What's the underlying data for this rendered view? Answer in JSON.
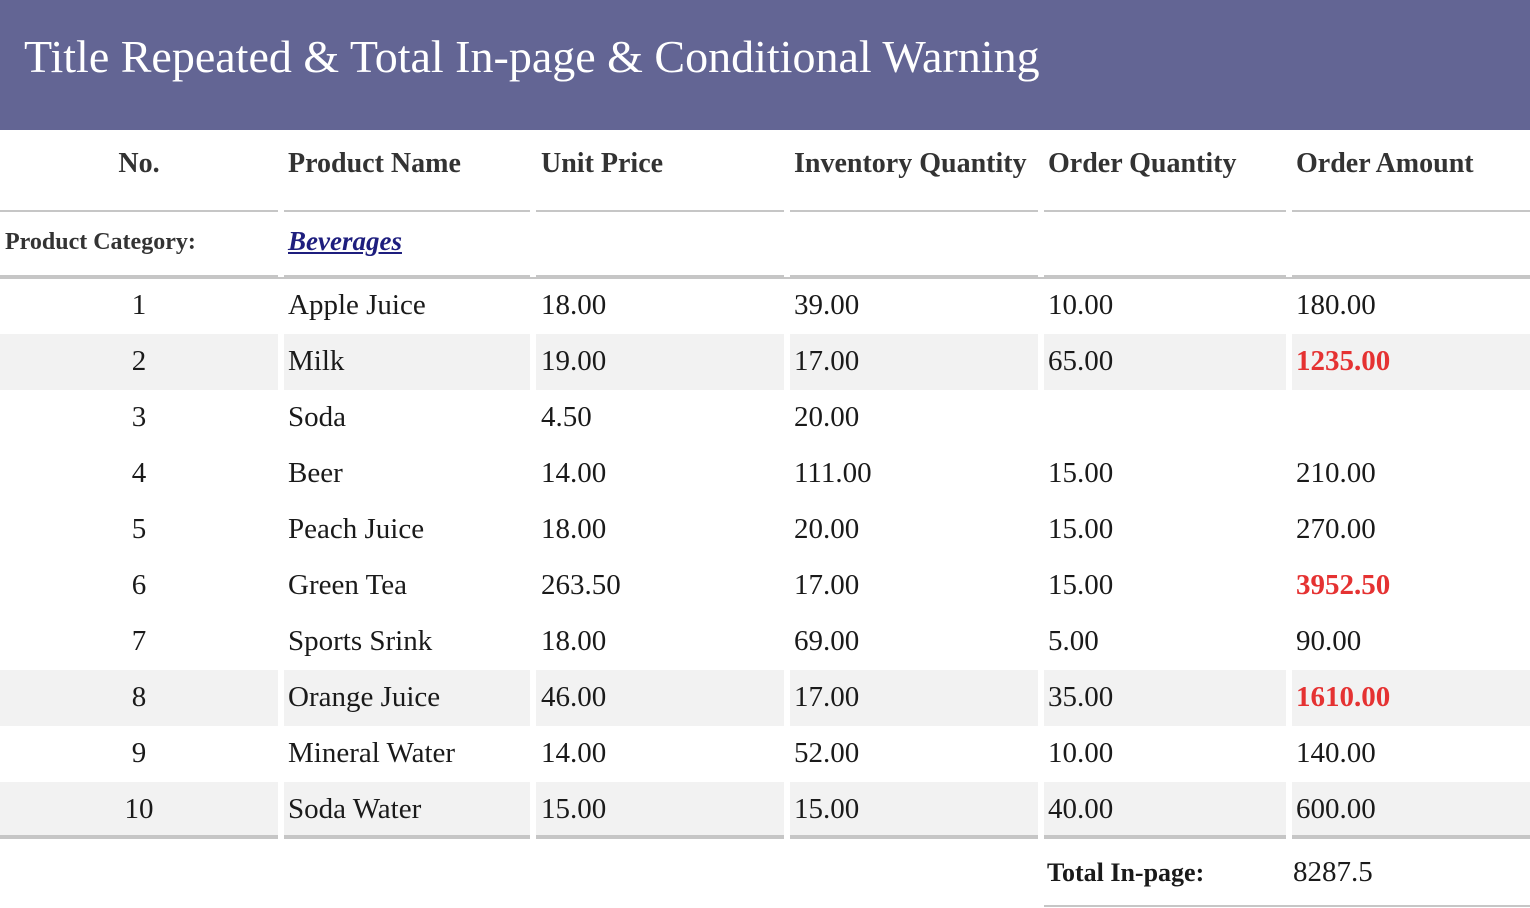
{
  "title": "Title Repeated & Total In-page & Conditional Warning",
  "columns": [
    "No.",
    "Product Name",
    "Unit Price",
    "Inventory Quantity",
    "Order Quantity",
    "Order Amount"
  ],
  "category": {
    "label": "Product Category:",
    "value": "Beverages"
  },
  "rows": [
    {
      "no": "1",
      "name": "Apple Juice",
      "price": "18.00",
      "inventory": "39.00",
      "order_qty": "10.00",
      "amount": "180.00",
      "warning": false,
      "shaded": false
    },
    {
      "no": "2",
      "name": "Milk",
      "price": "19.00",
      "inventory": "17.00",
      "order_qty": "65.00",
      "amount": "1235.00",
      "warning": true,
      "shaded": true
    },
    {
      "no": "3",
      "name": "Soda",
      "price": "4.50",
      "inventory": "20.00",
      "order_qty": "",
      "amount": "",
      "warning": false,
      "shaded": false
    },
    {
      "no": "4",
      "name": "Beer",
      "price": "14.00",
      "inventory": "111.00",
      "order_qty": "15.00",
      "amount": "210.00",
      "warning": false,
      "shaded": false
    },
    {
      "no": "5",
      "name": "Peach Juice",
      "price": "18.00",
      "inventory": "20.00",
      "order_qty": "15.00",
      "amount": "270.00",
      "warning": false,
      "shaded": false
    },
    {
      "no": "6",
      "name": "Green Tea",
      "price": "263.50",
      "inventory": "17.00",
      "order_qty": "15.00",
      "amount": "3952.50",
      "warning": true,
      "shaded": false
    },
    {
      "no": "7",
      "name": "Sports Srink",
      "price": "18.00",
      "inventory": "69.00",
      "order_qty": "5.00",
      "amount": "90.00",
      "warning": false,
      "shaded": false
    },
    {
      "no": "8",
      "name": "Orange Juice",
      "price": "46.00",
      "inventory": "17.00",
      "order_qty": "35.00",
      "amount": "1610.00",
      "warning": true,
      "shaded": true
    },
    {
      "no": "9",
      "name": "Mineral Water",
      "price": "14.00",
      "inventory": "52.00",
      "order_qty": "10.00",
      "amount": "140.00",
      "warning": false,
      "shaded": false
    },
    {
      "no": "10",
      "name": "Soda Water",
      "price": "15.00",
      "inventory": "15.00",
      "order_qty": "40.00",
      "amount": "600.00",
      "warning": false,
      "shaded": true
    }
  ],
  "total": {
    "label": "Total In-page:",
    "value": "8287.5"
  },
  "colors": {
    "title_bg": "#636594",
    "warning": "#e53232",
    "shaded_row": "#f2f2f2",
    "category_link": "#1e1e7e"
  }
}
